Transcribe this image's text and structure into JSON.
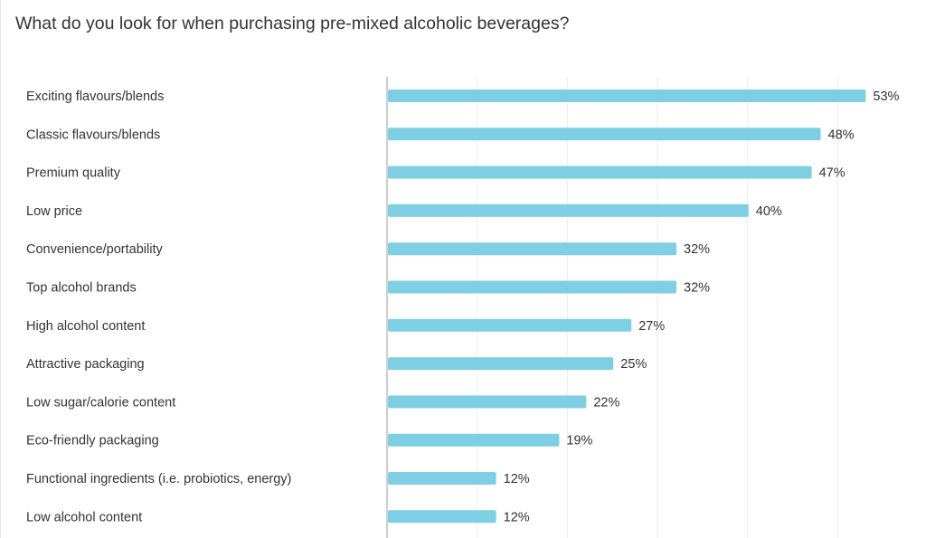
{
  "chart_data": {
    "type": "bar",
    "orientation": "horizontal",
    "title": "What do you look for when purchasing pre-mixed alcoholic beverages?",
    "xlabel": "",
    "ylabel": "",
    "xlim": [
      0,
      60
    ],
    "grid": true,
    "legend": "none",
    "bar_color": "#7ecfe4",
    "categories": [
      "Exciting flavours/blends",
      "Classic flavours/blends",
      "Premium quality",
      "Low price",
      "Convenience/portability",
      "Top alcohol brands",
      "High alcohol content",
      "Attractive packaging",
      "Low sugar/calorie content",
      "Eco-friendly packaging",
      "Functional ingredients (i.e. probiotics, energy)",
      "Low alcohol content"
    ],
    "values": [
      53,
      48,
      47,
      40,
      32,
      32,
      27,
      25,
      22,
      19,
      12,
      12
    ],
    "value_labels": [
      "53%",
      "48%",
      "47%",
      "40%",
      "32%",
      "32%",
      "27%",
      "25%",
      "22%",
      "19%",
      "12%",
      "12%"
    ]
  }
}
